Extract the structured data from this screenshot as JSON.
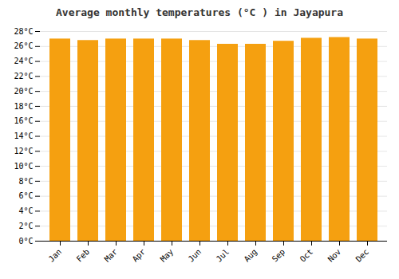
{
  "chart_data": {
    "type": "bar",
    "title": "Average monthly temperatures (°C ) in Jayapura",
    "categories": [
      "Jan",
      "Feb",
      "Mar",
      "Apr",
      "May",
      "Jun",
      "Jul",
      "Aug",
      "Sep",
      "Oct",
      "Nov",
      "Dec"
    ],
    "values": [
      27.0,
      26.8,
      27.0,
      27.0,
      27.0,
      26.8,
      26.3,
      26.3,
      26.7,
      27.1,
      27.2,
      27.0
    ],
    "color": "#F5A010",
    "ylim": [
      0,
      28
    ],
    "yticks": [
      {
        "value": 0,
        "label": "0°C"
      },
      {
        "value": 2,
        "label": "2°C"
      },
      {
        "value": 4,
        "label": "4°C"
      },
      {
        "value": 6,
        "label": "6°C"
      },
      {
        "value": 8,
        "label": "8°C"
      },
      {
        "value": 10,
        "label": "10°C"
      },
      {
        "value": 12,
        "label": "12°C"
      },
      {
        "value": 14,
        "label": "14°C"
      },
      {
        "value": 16,
        "label": "16°C"
      },
      {
        "value": 18,
        "label": "18°C"
      },
      {
        "value": 20,
        "label": "20°C"
      },
      {
        "value": 22,
        "label": "22°C"
      },
      {
        "value": 24,
        "label": "24°C"
      },
      {
        "value": 26,
        "label": "26°C"
      },
      {
        "value": 28,
        "label": "28°C"
      }
    ],
    "grid": true
  }
}
